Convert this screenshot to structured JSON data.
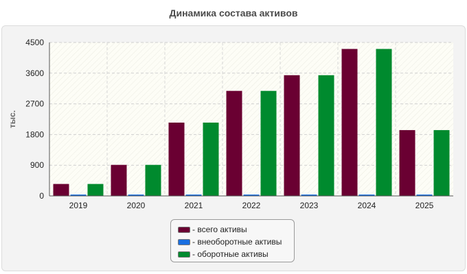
{
  "chart_data": {
    "type": "bar",
    "title": "Динамика состава активов",
    "ylabel": "тыс.",
    "xlabel": "",
    "categories": [
      "2019",
      "2020",
      "2021",
      "2022",
      "2023",
      "2024",
      "2025"
    ],
    "ylim": [
      0,
      4500
    ],
    "yticks": [
      "0",
      "900",
      "1800",
      "2700",
      "3600",
      "4500"
    ],
    "grid": true,
    "legend_position": "bottom",
    "series": [
      {
        "name": "- всего активы",
        "color": "#6a0032",
        "values": [
          350,
          910,
          2150,
          3080,
          3540,
          4310,
          1930
        ]
      },
      {
        "name": "- внеоборотные активы",
        "color": "#1a6fe0",
        "values": [
          0,
          0,
          0,
          0,
          0,
          0,
          0
        ]
      },
      {
        "name": "- оборотные активы",
        "color": "#008a2e",
        "values": [
          350,
          910,
          2150,
          3080,
          3540,
          4310,
          1930
        ]
      }
    ]
  }
}
